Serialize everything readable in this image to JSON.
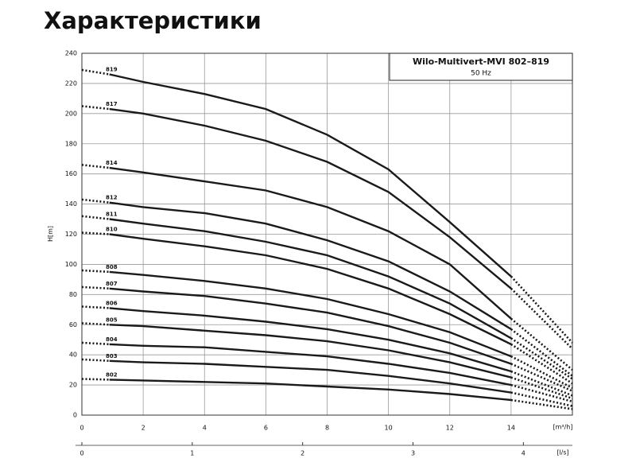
{
  "chart_data": {
    "type": "line",
    "title": "Характеристики",
    "subtitle": "Wilo-Multivert-MVI 802–819",
    "frequency": "50 Hz",
    "y_label": "H[m]",
    "x_label": "[m³/h]",
    "x2_label": "[l/s]",
    "x": [
      0,
      0.9,
      2,
      4,
      6,
      8,
      10,
      12,
      14,
      16
    ],
    "xlim": [
      0,
      16
    ],
    "xticks": [
      0,
      2,
      4,
      6,
      8,
      10,
      12,
      14
    ],
    "x2lim": [
      0,
      4.444
    ],
    "x2ticks": [
      0,
      1,
      2,
      3,
      4
    ],
    "ylim": [
      0,
      240
    ],
    "yticks": [
      0,
      20,
      40,
      60,
      80,
      100,
      120,
      140,
      160,
      180,
      200,
      220,
      240
    ],
    "grid": true,
    "color": "#1a1a1a",
    "series": [
      {
        "name": "819",
        "values": [
          229,
          226,
          221,
          213,
          203,
          186,
          163,
          128,
          92,
          48
        ]
      },
      {
        "name": "817",
        "values": [
          205,
          203,
          200,
          192,
          182,
          168,
          148,
          118,
          84,
          44
        ]
      },
      {
        "name": "814",
        "values": [
          166,
          164,
          161,
          155,
          149,
          138,
          122,
          100,
          64,
          30
        ]
      },
      {
        "name": "812",
        "values": [
          143,
          141,
          138,
          134,
          127,
          116,
          102,
          82,
          57,
          26
        ]
      },
      {
        "name": "811",
        "values": [
          132,
          130,
          127,
          122,
          115,
          106,
          92,
          74,
          51,
          24
        ]
      },
      {
        "name": "810",
        "values": [
          121,
          120,
          117,
          112,
          106,
          97,
          84,
          67,
          47,
          21
        ]
      },
      {
        "name": "808",
        "values": [
          96,
          95,
          93,
          89,
          84,
          77,
          67,
          55,
          39,
          18
        ]
      },
      {
        "name": "807",
        "values": [
          85,
          84,
          82,
          79,
          74,
          68,
          59,
          48,
          34,
          16
        ]
      },
      {
        "name": "806",
        "values": [
          72,
          71,
          69,
          66,
          62,
          57,
          50,
          41,
          29,
          13
        ]
      },
      {
        "name": "805",
        "values": [
          61,
          60,
          59,
          56,
          53,
          49,
          43,
          35,
          25,
          11
        ]
      },
      {
        "name": "804",
        "values": [
          48,
          47,
          46,
          45,
          42,
          39,
          34,
          28,
          20,
          9
        ]
      },
      {
        "name": "803",
        "values": [
          37,
          36,
          35,
          34,
          32,
          30,
          26,
          21,
          15,
          6
        ]
      },
      {
        "name": "802",
        "values": [
          24,
          23.5,
          23,
          22,
          21,
          19,
          17,
          14,
          10,
          4
        ]
      }
    ]
  }
}
